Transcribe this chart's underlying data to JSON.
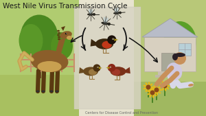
{
  "title": "West Nile Virus Transmission Cycle",
  "title_fontsize": 7.5,
  "title_color": "#1a1a1a",
  "bg_color": "#e8e4d0",
  "figsize": [
    3.0,
    1.69
  ],
  "dpi": 100,
  "left_ground_color": "#c8d898",
  "left_sky_color": "#b8d478",
  "center_bg_color": "#d0ccb8",
  "center_panel_color": "#dedad0",
  "right_bg_color": "#b8cc88",
  "right_sky_color": "#c8d898",
  "tree_trunk": "#7a5530",
  "tree_canopy1": "#4a9020",
  "tree_canopy2": "#5aa028",
  "fence_color": "#c8906a",
  "house_color": "#d8d0c0",
  "roof_color": "#b8bcc8",
  "horse_body": "#8b5e2a",
  "horse_dark": "#5a3a10",
  "horse_light": "#c8a050",
  "arrow_color": "#111111",
  "mosquito_body": "#2a2a18",
  "mosquito_wing": "#a0b8c8",
  "robin_body": "#4a3018",
  "robin_breast": "#c84020",
  "sparrow_body": "#7a5828",
  "finch_body": "#8a3820",
  "person_skin": "#c8905a",
  "person_shirt": "#d0c8e0",
  "person_pants": "#d8d8e8",
  "footer_text": "Centers for Disease Control and Prevention",
  "footer_fontsize": 3.5
}
